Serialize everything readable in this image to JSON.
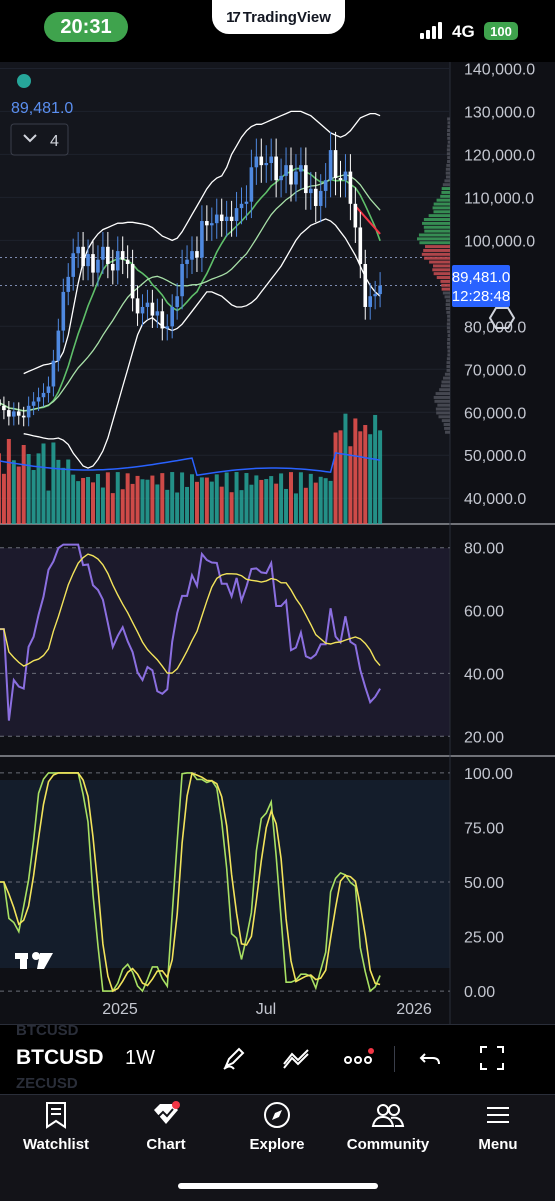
{
  "status_bar": {
    "time": "20:31",
    "app_name": "TradingView",
    "network": "4G",
    "battery": "100"
  },
  "legend": {
    "last_price": "89,481.0",
    "indicators_count": "4"
  },
  "price_tag": {
    "price": "89,481.0",
    "countdown": "12:28:48"
  },
  "toolbar": {
    "symbol": "BTCUSD",
    "interval": "1W",
    "ghost_top": "BTCUSD",
    "ghost_bottom": "ZECUSD"
  },
  "tabs": [
    {
      "label": "Watchlist",
      "icon": "bookmark-icon"
    },
    {
      "label": "Chart",
      "icon": "chart-icon"
    },
    {
      "label": "Explore",
      "icon": "compass-icon"
    },
    {
      "label": "Community",
      "icon": "people-icon"
    },
    {
      "label": "Menu",
      "icon": "hamburger-icon"
    }
  ],
  "colors": {
    "up": "#4f89e0",
    "down": "#ffffff",
    "vol_up": "#26a69a",
    "vol_down": "#ef5350",
    "rsi": "#8b6fe0",
    "rsi_ma": "#f2e35b",
    "stoch_k": "#a8e063",
    "stoch_d": "#f2e35b",
    "price_tag": "#2962ff",
    "accent_red_dot": "#f23645"
  },
  "chart_data": {
    "type": "candlestick",
    "interval": "1W",
    "x_ticks": [
      "2025",
      "Jul",
      "2026"
    ],
    "price": {
      "y_ticks": [
        "140,000.0",
        "130,000.0",
        "120,000.0",
        "110,000.0",
        "100,000.0",
        "80,000.0",
        "70,000.0",
        "60,000.0",
        "50,000.0",
        "40,000.0"
      ],
      "ylim": [
        34000,
        141500
      ],
      "last": 89481,
      "closes": [
        63000,
        61500,
        60500,
        59000,
        60200,
        59200,
        58800,
        61500,
        62500,
        63500,
        64500,
        66000,
        72000,
        79000,
        88000,
        91500,
        97000,
        98500,
        94000,
        96800,
        92500,
        95500,
        98500,
        94500,
        93000,
        97500,
        95500,
        94500,
        86500,
        83000,
        84500,
        85500,
        82500,
        83500,
        79500,
        80000,
        84500,
        87000,
        94500,
        95500,
        97500,
        96000,
        104500,
        103500,
        104000,
        106000,
        104500,
        105500,
        104500,
        107500,
        108500,
        109000,
        117000,
        119500,
        117500,
        118000,
        119500,
        114000,
        115000,
        117500,
        113000,
        116000,
        117500,
        111000,
        112000,
        108000,
        111500,
        114000,
        121000,
        114500,
        114000,
        116000,
        108500,
        103000,
        94500,
        84500,
        87000,
        87500,
        89481
      ],
      "bb_upper": [
        69000,
        69500,
        70000,
        70500,
        71000,
        71200,
        71500,
        72000,
        74000,
        78000,
        84000,
        90000,
        95000,
        98000,
        100000,
        101500,
        102500,
        103000,
        103500,
        104000,
        104000,
        104200,
        104200,
        104000,
        103800,
        103500,
        103000,
        102000,
        101000,
        100500,
        100000,
        100500,
        102000,
        104000,
        106000,
        108000,
        110000,
        112000,
        113500,
        114500,
        115000,
        117000,
        120000,
        122000,
        124000,
        125500,
        126500,
        127000,
        127000,
        127500,
        128000,
        128500,
        129000,
        129500,
        130000,
        130000,
        130000,
        129500,
        129000,
        128000,
        127000,
        126000,
        125000,
        124500,
        124000,
        124500,
        125500,
        127000,
        128500,
        129000,
        129500,
        129500,
        129000
      ],
      "bb_lower": [
        55000,
        54800,
        54500,
        54300,
        54000,
        53800,
        53800,
        54000,
        53500,
        52500,
        50500,
        49000,
        47500,
        47000,
        47500,
        49000,
        51000,
        54000,
        58000,
        62000,
        66000,
        70000,
        74000,
        78000,
        80500,
        81500,
        82000,
        81000,
        80000,
        79500,
        79000,
        79500,
        80500,
        82000,
        83500,
        85000,
        86500,
        88000,
        88000,
        87500,
        87000,
        86000,
        85000,
        84500,
        84500,
        84800,
        85500,
        86500,
        88000,
        89500,
        91000,
        92500,
        94000,
        96000,
        98000,
        100000,
        101500,
        102500,
        103500,
        104000,
        104500,
        105000,
        104500,
        103500,
        102000,
        100500,
        98500,
        96500,
        94000,
        91500,
        89500,
        88000,
        87000
      ]
    },
    "rsi": {
      "y_ticks": [
        "80.00",
        "60.00",
        "40.00",
        "20.00"
      ],
      "ylim": [
        15,
        85
      ],
      "levels": [
        70,
        30
      ]
    },
    "stoch_rsi": {
      "y_ticks": [
        "100.00",
        "75.00",
        "50.00",
        "25.00",
        "0.00"
      ],
      "ylim": [
        -5,
        105
      ],
      "levels": [
        100,
        50,
        0
      ]
    }
  }
}
